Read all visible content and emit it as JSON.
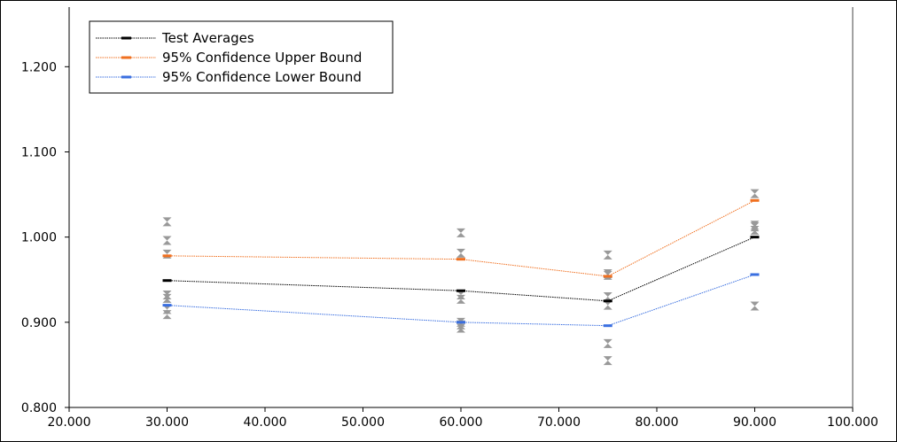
{
  "chart_data": {
    "type": "scatter",
    "title": "",
    "xlabel": "",
    "ylabel": "",
    "xlim": [
      20,
      100
    ],
    "ylim": [
      0.8,
      1.27
    ],
    "xticks": [
      20,
      30,
      40,
      50,
      60,
      70,
      80,
      90,
      100
    ],
    "yticks": [
      0.8,
      0.9,
      1.0,
      1.1,
      1.2
    ],
    "xtick_labels": [
      "20.000",
      "30.000",
      "40.000",
      "50.000",
      "60.000",
      "70.000",
      "80.000",
      "90.000",
      "100.000"
    ],
    "ytick_labels": [
      "0.800",
      "0.900",
      "1.000",
      "1.100",
      "1.200"
    ],
    "grid": false,
    "legend_position": "top-left",
    "legend": [
      {
        "label": "Test Averages",
        "color": "#000000"
      },
      {
        "label": "95% Confidence Upper Bound",
        "color": "#f07020"
      },
      {
        "label": "95% Confidence Lower Bound",
        "color": "#3a6fe0"
      }
    ],
    "series": [
      {
        "name": "Test Averages",
        "color": "#000000",
        "x": [
          30,
          60,
          75,
          90
        ],
        "y": [
          0.949,
          0.937,
          0.925,
          1.0
        ]
      },
      {
        "name": "95% Confidence Upper Bound",
        "color": "#f07020",
        "x": [
          30,
          60,
          75,
          90
        ],
        "y": [
          0.978,
          0.974,
          0.954,
          1.043
        ]
      },
      {
        "name": "95% Confidence Lower Bound",
        "color": "#3a6fe0",
        "x": [
          30,
          60,
          75,
          90
        ],
        "y": [
          0.92,
          0.9,
          0.896,
          0.956
        ]
      }
    ],
    "test_points": {
      "color": "#999999",
      "x": [
        30,
        30,
        30,
        30,
        30,
        30,
        30,
        60,
        60,
        60,
        60,
        60,
        60,
        60,
        75,
        75,
        75,
        75,
        75,
        75,
        75,
        90,
        90,
        90,
        90,
        90
      ],
      "y": [
        1.018,
        0.996,
        0.98,
        0.932,
        0.928,
        0.915,
        0.909,
        1.005,
        0.981,
        0.932,
        0.927,
        0.9,
        0.897,
        0.893,
        0.979,
        0.957,
        0.93,
        0.92,
        0.875,
        0.855,
        0.955,
        1.051,
        1.014,
        1.012,
        1.008,
        0.919
      ]
    }
  }
}
